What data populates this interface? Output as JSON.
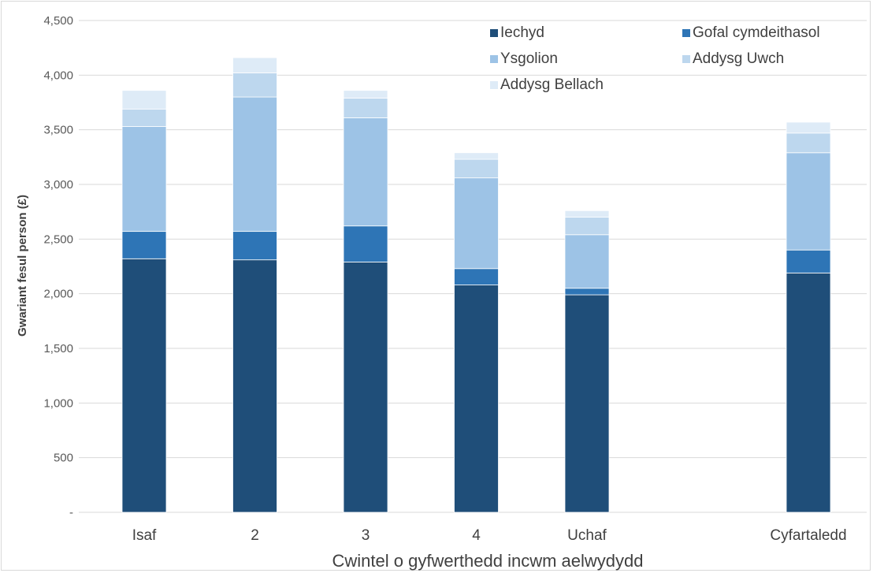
{
  "chart_data": {
    "type": "bar",
    "stacked": true,
    "xlabel": "Cwintel o gyfwerthedd incwm aelwydydd",
    "ylabel": "Gwariant fesul person (£)",
    "ylim": [
      0,
      4500
    ],
    "yticks": [
      0,
      500,
      1000,
      1500,
      2000,
      2500,
      3000,
      3500,
      4000,
      4500
    ],
    "ytick_labels": [
      "-",
      "500",
      "1,000",
      "1,500",
      "2,000",
      "2,500",
      "3,000",
      "3,500",
      "4,000",
      "4,500"
    ],
    "grid": true,
    "legend_position": "top-right",
    "categories": [
      "Isaf",
      "2",
      "3",
      "4",
      "Uchaf",
      "Cyfartaledd"
    ],
    "series": [
      {
        "name": "Iechyd",
        "color": "#1f4e79",
        "values": [
          2320,
          2310,
          2290,
          2080,
          1990,
          2190
        ]
      },
      {
        "name": "Gofal cymdeithasol",
        "color": "#2e75b6",
        "values": [
          250,
          260,
          330,
          150,
          60,
          210
        ]
      },
      {
        "name": "Ysgolion",
        "color": "#9dc3e6",
        "values": [
          960,
          1230,
          990,
          830,
          490,
          890
        ]
      },
      {
        "name": "Addysg Uwch",
        "color": "#bdd7ee",
        "values": [
          160,
          220,
          180,
          170,
          160,
          180
        ]
      },
      {
        "name": "Addysg Bellach",
        "color": "#deebf7",
        "values": [
          170,
          140,
          70,
          60,
          60,
          100
        ]
      }
    ]
  }
}
